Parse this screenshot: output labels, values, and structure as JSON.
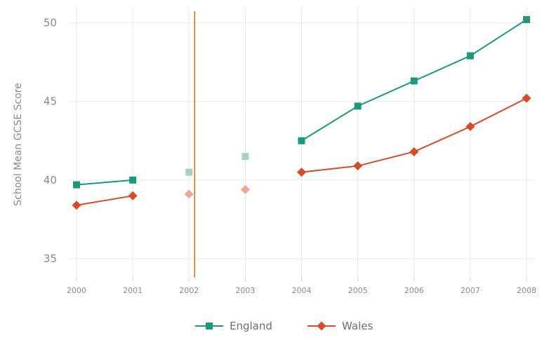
{
  "chart_data": {
    "type": "line",
    "ylabel": "School Mean GCSE Score",
    "xlabel": "",
    "ylim": [
      33.8,
      51.0
    ],
    "xlim": [
      1999.85,
      2008.15
    ],
    "yticks": [
      35,
      40,
      45,
      50
    ],
    "x": [
      2000,
      2001,
      2002,
      2003,
      2004,
      2005,
      2006,
      2007,
      2008
    ],
    "x_tick_labels": [
      "2000",
      "2001",
      "2002",
      "2003",
      "2004",
      "2005",
      "2006",
      "2007",
      "2008"
    ],
    "grid": true,
    "legend_position": "bottom",
    "reference_line": {
      "x": 2002.1,
      "color": "#c8721c"
    },
    "series": [
      {
        "name": "England",
        "color": "#1a9a7a",
        "faded_color": "#a9d2be",
        "marker": "square",
        "values": [
          39.7,
          40.0,
          40.5,
          41.5,
          42.5,
          44.7,
          46.3,
          47.9,
          50.2
        ],
        "faded": [
          false,
          false,
          true,
          true,
          false,
          false,
          false,
          false,
          false
        ],
        "segments": [
          [
            2000,
            2001
          ],
          [
            2004,
            2008
          ]
        ]
      },
      {
        "name": "Wales",
        "color": "#d94a2b",
        "faded_color": "#eda893",
        "marker": "diamond",
        "values": [
          38.4,
          39.0,
          39.1,
          39.4,
          40.5,
          40.9,
          41.8,
          43.4,
          45.2
        ],
        "faded": [
          false,
          false,
          true,
          true,
          false,
          false,
          false,
          false,
          false
        ],
        "segments": [
          [
            2000,
            2001
          ],
          [
            2004,
            2008
          ]
        ]
      }
    ]
  }
}
